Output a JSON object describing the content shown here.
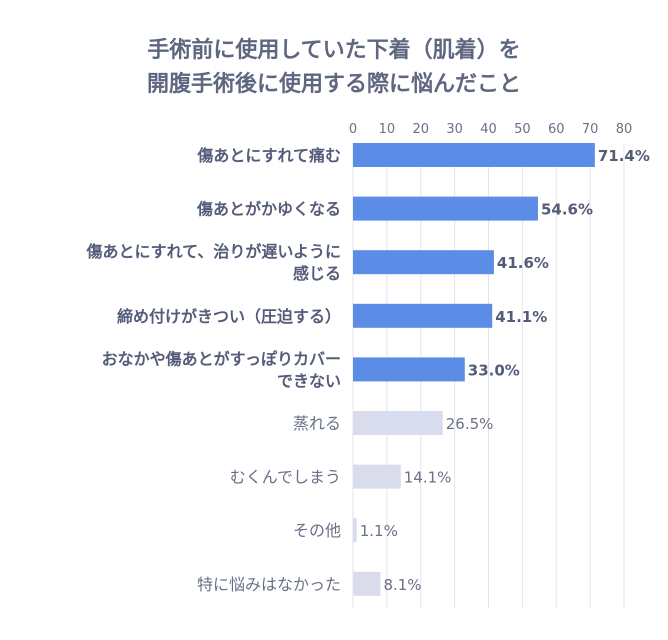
{
  "title_lines": [
    "手術前に使用していた下着（肌着）を",
    "開腹手術後に使用する際に悩んだこと"
  ],
  "colors": {
    "highlight_bar": "#5b8ce6",
    "normal_bar": "#d9dcec",
    "highlight_text": "#555c7a",
    "normal_text": "#6a7088",
    "grid": "#e2e4ee",
    "title": "#5f6680"
  },
  "chart_data": {
    "type": "bar",
    "orientation": "horizontal",
    "xlim": [
      0,
      80
    ],
    "x_ticks": [
      0,
      10,
      20,
      30,
      40,
      50,
      60,
      70,
      80
    ],
    "grid": true,
    "categories": [
      [
        "傷あとにすれて痛む"
      ],
      [
        "傷あとがかゆくなる"
      ],
      [
        "傷あとにすれて、治りが遅いように",
        "感じる"
      ],
      [
        "締め付けがきつい（圧迫する）"
      ],
      [
        "おなかや傷あとがすっぽりカバー",
        "できない"
      ],
      [
        "蒸れる"
      ],
      [
        "むくんでしまう"
      ],
      [
        "その他"
      ],
      [
        "特に悩みはなかった"
      ]
    ],
    "values": [
      71.4,
      54.6,
      41.6,
      41.1,
      33.0,
      26.5,
      14.1,
      1.1,
      8.1
    ],
    "value_labels": [
      "71.4%",
      "54.6%",
      "41.6%",
      "41.1%",
      "33.0%",
      "26.5%",
      "14.1%",
      "1.1%",
      "8.1%"
    ],
    "highlighted": [
      true,
      true,
      true,
      true,
      true,
      false,
      false,
      false,
      false
    ]
  }
}
